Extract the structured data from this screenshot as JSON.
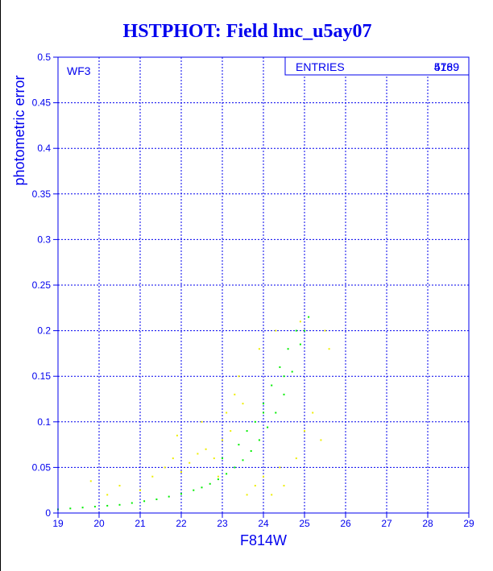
{
  "title": "HSTPHOT: Field lmc_u5ay07",
  "chart_data": {
    "type": "scatter",
    "title": "HSTPHOT: Field lmc_u5ay07",
    "xlabel": "F814W",
    "ylabel": "photometric error",
    "xlim": [
      19,
      29
    ],
    "ylim": [
      0,
      0.5
    ],
    "x_ticks": [
      "19",
      "20",
      "21",
      "22",
      "23",
      "24",
      "25",
      "26",
      "27",
      "28",
      "29"
    ],
    "y_ticks": [
      "0",
      "0.05",
      "0.1",
      "0.15",
      "0.2",
      "0.25",
      "0.3",
      "0.35",
      "0.4",
      "0.45",
      "0.5"
    ],
    "grid": true,
    "annotation": "WF3",
    "stats_box": {
      "label": "ENTRIES",
      "values": [
        "5789",
        "4169"
      ]
    },
    "series": [
      {
        "color": "#00ee00",
        "points": [
          [
            19.0,
            0.004
          ],
          [
            19.3,
            0.005
          ],
          [
            19.6,
            0.006
          ],
          [
            19.9,
            0.007
          ],
          [
            20.2,
            0.008
          ],
          [
            20.5,
            0.009
          ],
          [
            20.8,
            0.011
          ],
          [
            21.1,
            0.013
          ],
          [
            21.4,
            0.015
          ],
          [
            21.7,
            0.018
          ],
          [
            22.0,
            0.021
          ],
          [
            22.3,
            0.025
          ],
          [
            22.5,
            0.028
          ],
          [
            22.7,
            0.032
          ],
          [
            22.9,
            0.037
          ],
          [
            23.1,
            0.043
          ],
          [
            23.3,
            0.05
          ],
          [
            23.5,
            0.058
          ],
          [
            23.7,
            0.068
          ],
          [
            23.9,
            0.08
          ],
          [
            24.1,
            0.094
          ],
          [
            24.3,
            0.11
          ],
          [
            24.5,
            0.13
          ],
          [
            24.7,
            0.155
          ],
          [
            24.9,
            0.185
          ],
          [
            25.1,
            0.215
          ],
          [
            23.0,
            0.06
          ],
          [
            23.4,
            0.075
          ],
          [
            23.6,
            0.09
          ],
          [
            23.8,
            0.1
          ],
          [
            24.0,
            0.12
          ],
          [
            24.2,
            0.14
          ],
          [
            24.4,
            0.16
          ],
          [
            24.6,
            0.18
          ],
          [
            24.8,
            0.2
          ],
          [
            24.0,
            0.11
          ],
          [
            24.5,
            0.15
          ],
          [
            25.0,
            0.2
          ]
        ]
      },
      {
        "color": "#eeee00",
        "points": [
          [
            19.8,
            0.035
          ],
          [
            20.2,
            0.02
          ],
          [
            20.5,
            0.03
          ],
          [
            21.0,
            0.025
          ],
          [
            21.3,
            0.04
          ],
          [
            21.6,
            0.05
          ],
          [
            21.8,
            0.06
          ],
          [
            22.0,
            0.045
          ],
          [
            22.2,
            0.055
          ],
          [
            22.4,
            0.065
          ],
          [
            22.6,
            0.07
          ],
          [
            22.8,
            0.06
          ],
          [
            22.9,
            0.04
          ],
          [
            23.0,
            0.08
          ],
          [
            23.2,
            0.09
          ],
          [
            23.1,
            0.11
          ],
          [
            23.3,
            0.13
          ],
          [
            23.5,
            0.12
          ],
          [
            23.6,
            0.02
          ],
          [
            23.8,
            0.03
          ],
          [
            24.0,
            0.04
          ],
          [
            24.2,
            0.02
          ],
          [
            24.4,
            0.05
          ],
          [
            24.5,
            0.03
          ],
          [
            24.8,
            0.06
          ],
          [
            25.0,
            0.09
          ],
          [
            25.2,
            0.11
          ],
          [
            25.4,
            0.08
          ],
          [
            25.6,
            0.18
          ],
          [
            25.5,
            0.2
          ],
          [
            24.9,
            0.21
          ],
          [
            24.3,
            0.2
          ],
          [
            23.9,
            0.18
          ],
          [
            23.4,
            0.15
          ],
          [
            22.5,
            0.1
          ],
          [
            21.9,
            0.085
          ]
        ]
      }
    ]
  }
}
